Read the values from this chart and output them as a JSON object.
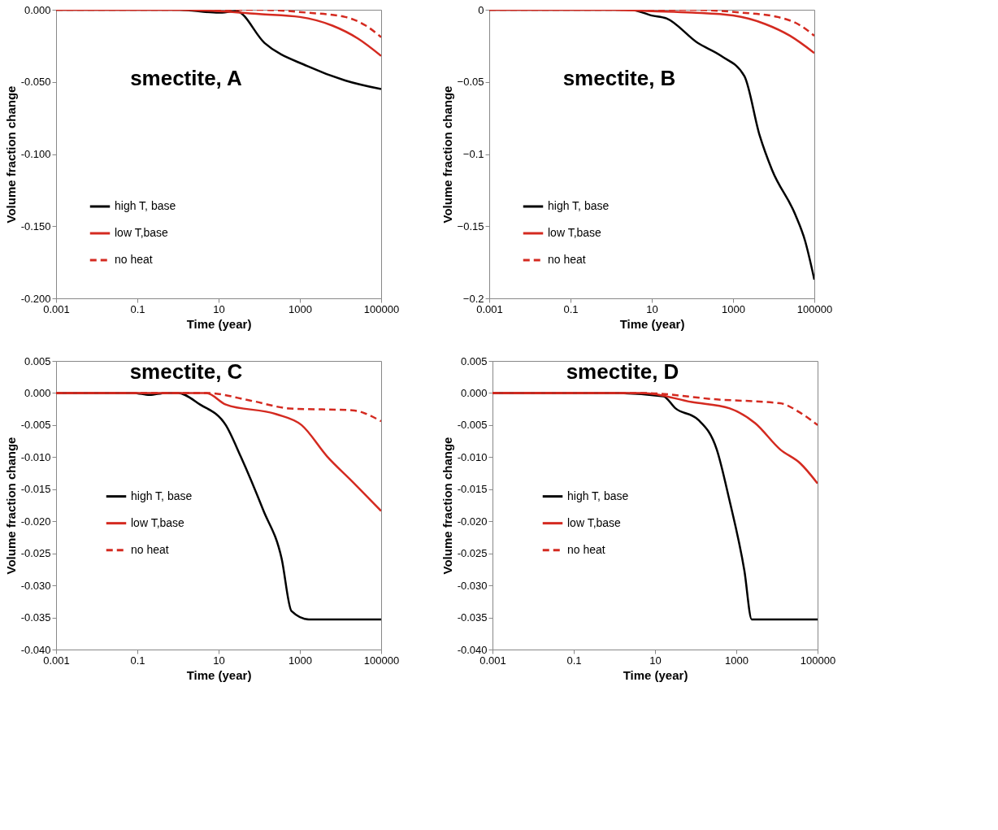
{
  "chart_data": [
    {
      "type": "line",
      "title": "smectite, A",
      "xlabel": "Time (year)",
      "ylabel": "Volume fraction change",
      "log": "x",
      "grid": false,
      "legend": "bottom left",
      "xlim": [
        0.001,
        100000
      ],
      "xticks": [
        0.001,
        0.1,
        10,
        1000,
        100000
      ],
      "ylim": [
        -0.2,
        0.0
      ],
      "yticks": [
        {
          "value": 0.0,
          "label": "0.000"
        },
        {
          "value": -0.05,
          "label": "-0.050"
        },
        {
          "value": -0.1,
          "label": "-0.100"
        },
        {
          "value": -0.15,
          "label": "-0.150"
        },
        {
          "value": -0.2,
          "label": "-0.200"
        }
      ],
      "series": [
        {
          "name": "high T, base",
          "color": "#000000",
          "line_style": "solid",
          "x": [
            0.001,
            1,
            10,
            27,
            135,
            1500,
            13000,
            100000
          ],
          "values": [
            0,
            0,
            -0.002,
            -0.001,
            -0.023,
            -0.039,
            -0.049,
            -0.055
          ]
        },
        {
          "name": "low T,base",
          "color": "#d42a20",
          "line_style": "solid",
          "x": [
            0.001,
            1,
            10,
            100,
            1000,
            6300,
            27000,
            100000
          ],
          "values": [
            0,
            0,
            -0.001,
            -0.003,
            -0.005,
            -0.011,
            -0.02,
            -0.032
          ]
        },
        {
          "name": "no heat",
          "color": "#d42a20",
          "line_style": "dashed",
          "x": [
            0.001,
            10,
            100,
            1500,
            13000,
            42000,
            100000
          ],
          "values": [
            0,
            0,
            0,
            -0.002,
            -0.005,
            -0.011,
            -0.019
          ]
        }
      ]
    },
    {
      "type": "line",
      "title": "smectite, B",
      "xlabel": "Time (year)",
      "ylabel": "Volume fraction change",
      "log": "x",
      "grid": false,
      "legend": "bottom left",
      "xlim": [
        0.001,
        100000
      ],
      "xticks": [
        0.001,
        0.1,
        10,
        1000,
        100000
      ],
      "ylim": [
        -0.2,
        0.0
      ],
      "yticks": [
        0,
        -0.05,
        -0.1,
        -0.15,
        -0.2
      ],
      "series": [
        {
          "name": "high T, base",
          "color": "#000000",
          "line_style": "solid",
          "x": [
            0.001,
            3,
            10,
            23,
            135,
            510,
            1900,
            4500,
            9100,
            34000,
            59000,
            100000
          ],
          "values": [
            0,
            0,
            -0.004,
            -0.006,
            -0.023,
            -0.032,
            -0.046,
            -0.087,
            -0.111,
            -0.142,
            -0.16,
            -0.187
          ]
        },
        {
          "name": "low T,base",
          "color": "#d42a20",
          "line_style": "solid",
          "x": [
            0.001,
            1,
            10,
            100,
            1000,
            6300,
            25000,
            100000
          ],
          "values": [
            0,
            0,
            -0.001,
            -0.002,
            -0.004,
            -0.01,
            -0.018,
            -0.03
          ]
        },
        {
          "name": "no heat",
          "color": "#d42a20",
          "line_style": "dashed",
          "x": [
            0.001,
            10,
            100,
            1600,
            12600,
            40000,
            100000
          ],
          "values": [
            0,
            0,
            0,
            -0.002,
            -0.005,
            -0.01,
            -0.018
          ]
        }
      ]
    },
    {
      "type": "line",
      "title": "smectite, C",
      "xlabel": "Time (year)",
      "ylabel": "Volume fraction change",
      "log": "x",
      "grid": false,
      "legend": "left",
      "xlim": [
        0.001,
        100000
      ],
      "xticks": [
        0.001,
        0.1,
        10,
        1000,
        100000
      ],
      "ylim": [
        -0.04,
        0.005
      ],
      "yticks": [
        {
          "value": 0.005,
          "label": "0.005"
        },
        {
          "value": 0.0,
          "label": "0.000"
        },
        {
          "value": -0.005,
          "label": "-0.005"
        },
        {
          "value": -0.01,
          "label": "-0.010"
        },
        {
          "value": -0.015,
          "label": "-0.015"
        },
        {
          "value": -0.02,
          "label": "-0.020"
        },
        {
          "value": -0.025,
          "label": "-0.025"
        },
        {
          "value": -0.03,
          "label": "-0.030"
        },
        {
          "value": -0.035,
          "label": "-0.035"
        },
        {
          "value": -0.04,
          "label": "-0.040"
        }
      ],
      "series": [
        {
          "name": "high T, base",
          "color": "#000000",
          "line_style": "solid",
          "x": [
            0.001,
            0.08,
            0.2,
            0.5,
            1,
            3.5,
            15,
            35,
            126,
            355,
            620,
            1660,
            100000
          ],
          "values": [
            0,
            0,
            -0.0003,
            0,
            0,
            -0.0018,
            -0.005,
            -0.0099,
            -0.0183,
            -0.0258,
            -0.034,
            -0.0353,
            -0.0353
          ]
        },
        {
          "name": "low T,base",
          "color": "#d42a20",
          "line_style": "solid",
          "x": [
            0.001,
            1,
            5,
            15,
            263,
            1100,
            4700,
            19500,
            100000
          ],
          "values": [
            0,
            0,
            0,
            -0.0018,
            -0.0033,
            -0.005,
            -0.0099,
            -0.0138,
            -0.0184
          ]
        },
        {
          "name": "no heat",
          "color": "#d42a20",
          "line_style": "dashed",
          "x": [
            0.001,
            5,
            63,
            550,
            19500,
            100000
          ],
          "values": [
            0,
            0,
            -0.0012,
            -0.0024,
            -0.0027,
            -0.0044
          ]
        }
      ]
    },
    {
      "type": "line",
      "title": "smectite, D",
      "xlabel": "Time (year)",
      "ylabel": "Volume fraction change",
      "log": "x",
      "grid": false,
      "legend": "left",
      "xlim": [
        0.001,
        100000
      ],
      "xticks": [
        0.001,
        0.1,
        10,
        1000,
        100000
      ],
      "ylim": [
        -0.04,
        0.005
      ],
      "yticks": [
        {
          "value": 0.005,
          "label": "0.005"
        },
        {
          "value": 0.0,
          "label": "0.000"
        },
        {
          "value": -0.005,
          "label": "-0.005"
        },
        {
          "value": -0.01,
          "label": "-0.010"
        },
        {
          "value": -0.015,
          "label": "-0.015"
        },
        {
          "value": -0.02,
          "label": "-0.020"
        },
        {
          "value": -0.025,
          "label": "-0.025"
        },
        {
          "value": -0.03,
          "label": "-0.030"
        },
        {
          "value": -0.035,
          "label": "-0.035"
        },
        {
          "value": -0.04,
          "label": "-0.040"
        }
      ],
      "series": [
        {
          "name": "high T, base",
          "color": "#000000",
          "line_style": "solid",
          "x": [
            0.001,
            1,
            16,
            32,
            117,
            330,
            660,
            1580,
            2400,
            100000
          ],
          "values": [
            0,
            0,
            -0.0005,
            -0.0024,
            -0.0042,
            -0.0088,
            -0.0164,
            -0.0277,
            -0.0353,
            -0.0353
          ]
        },
        {
          "name": "low T,base",
          "color": "#d42a20",
          "line_style": "solid",
          "x": [
            0.001,
            1,
            5,
            80,
            690,
            2900,
            12000,
            38000,
            100000
          ],
          "values": [
            0,
            0,
            0,
            -0.0014,
            -0.0024,
            -0.0047,
            -0.0088,
            -0.011,
            -0.0141
          ]
        },
        {
          "name": "no heat",
          "color": "#d42a20",
          "line_style": "dashed",
          "x": [
            0.001,
            5,
            330,
            12000,
            38000,
            100000
          ],
          "values": [
            0,
            0,
            -0.001,
            -0.0016,
            -0.0031,
            -0.005
          ]
        }
      ]
    }
  ]
}
